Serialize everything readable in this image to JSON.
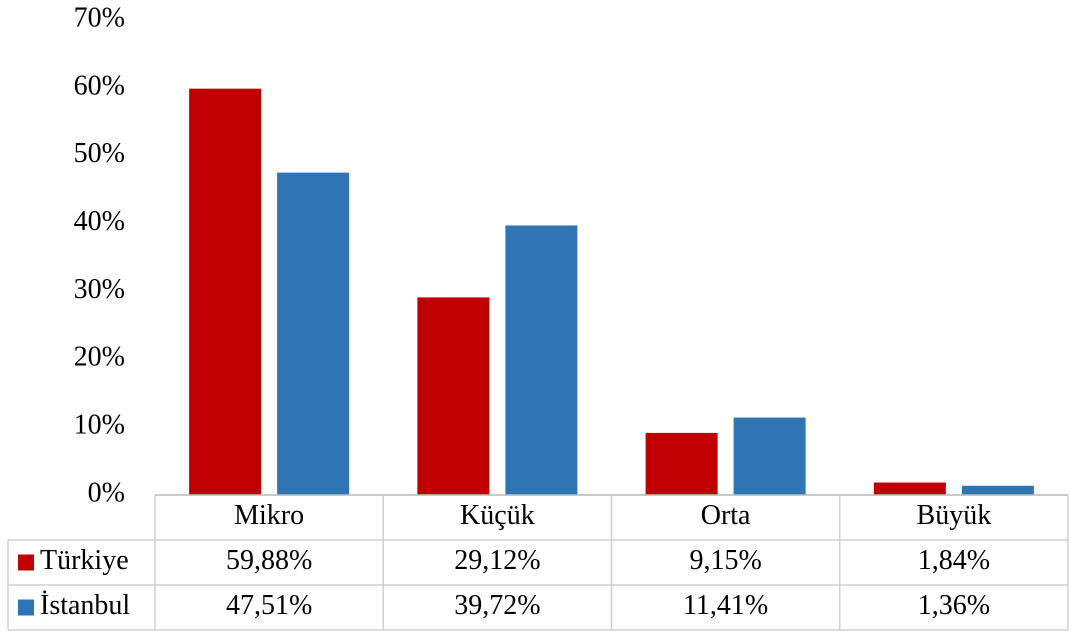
{
  "chart_data": {
    "type": "bar",
    "categories": [
      "Mikro",
      "Küçük",
      "Orta",
      "Büyük"
    ],
    "series": [
      {
        "name": "Türkiye",
        "color": "#c00000",
        "values": [
          59.88,
          29.12,
          9.15,
          1.84
        ],
        "value_labels": [
          "59,88%",
          "29,12%",
          "9,15%",
          "1,84%"
        ]
      },
      {
        "name": "İstanbul",
        "color": "#2e75b6",
        "values": [
          47.51,
          39.72,
          11.41,
          1.36
        ],
        "value_labels": [
          "47,51%",
          "39,72%",
          "11,41%",
          "1,36%"
        ]
      }
    ],
    "ylim": [
      0,
      70
    ],
    "yticks": [
      {
        "value": 0,
        "label": "0%"
      },
      {
        "value": 10,
        "label": "10%"
      },
      {
        "value": 20,
        "label": "20%"
      },
      {
        "value": 30,
        "label": "30%"
      },
      {
        "value": 40,
        "label": "40%"
      },
      {
        "value": 50,
        "label": "50%"
      },
      {
        "value": 60,
        "label": "60%"
      },
      {
        "value": 70,
        "label": "70%"
      }
    ],
    "grid": false,
    "legend": "table"
  }
}
